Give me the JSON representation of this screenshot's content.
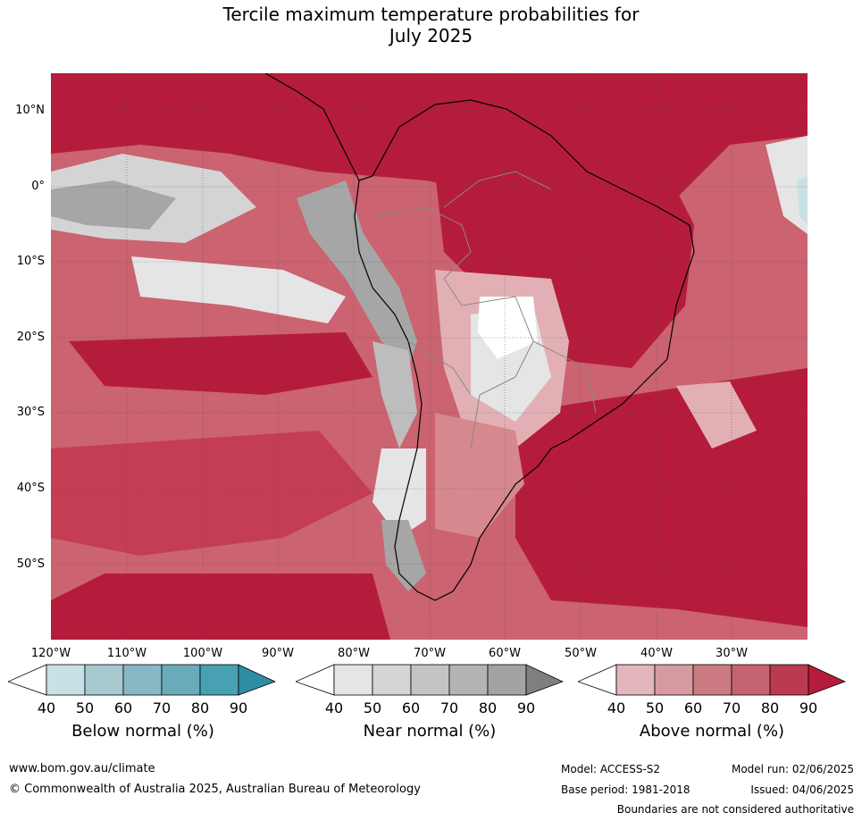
{
  "title_line1": "Tercile maximum temperature probabilities for",
  "title_line2": "July 2025",
  "map": {
    "lat_labels": [
      "10°N",
      "0°",
      "10°S",
      "20°S",
      "30°S",
      "40°S",
      "50°S"
    ],
    "lon_labels": [
      "120°W",
      "110°W",
      "100°W",
      "90°W",
      "80°W",
      "70°W",
      "60°W",
      "50°W",
      "40°W",
      "30°W"
    ],
    "colors": {
      "above_90": "#b51c3b",
      "above_80": "#c43d52",
      "above_70": "#cb6370",
      "above_60": "#d6888e",
      "above_50": "#e2b0b4",
      "near_50": "#e5e5e5",
      "near_60": "#d4d4d4",
      "near_70": "#bdbdbd",
      "near_80": "#a6a6a6",
      "below_50": "#c8e1e7",
      "ocean_land_line": "#000000",
      "border_line": "#888888"
    }
  },
  "legends": [
    {
      "title": "Below normal (%)",
      "ticks": [
        "40",
        "50",
        "60",
        "70",
        "80",
        "90"
      ],
      "colors": [
        "#c8e1e7",
        "#a6c9d0",
        "#88b8c4",
        "#6aabba",
        "#47a1b2",
        "#2e8da4"
      ]
    },
    {
      "title": "Near normal (%)",
      "ticks": [
        "40",
        "50",
        "60",
        "70",
        "80",
        "90"
      ],
      "colors": [
        "#e5e5e5",
        "#d5d5d5",
        "#c4c4c4",
        "#b4b4b4",
        "#a3a3a3",
        "#7f7f7f"
      ]
    },
    {
      "title": "Above normal (%)",
      "ticks": [
        "40",
        "50",
        "60",
        "70",
        "80",
        "90"
      ],
      "colors": [
        "#e2b6ba",
        "#d79aa0",
        "#cc7a82",
        "#c66370",
        "#bb3a50",
        "#b51c3b"
      ]
    }
  ],
  "footer": {
    "website": "www.bom.gov.au/climate",
    "copyright": "© Commonwealth of Australia 2025, Australian Bureau of Meteorology",
    "model": "Model: ACCESS-S2",
    "base_period": "Base period: 1981-2018",
    "model_run": "Model run: 02/06/2025",
    "issued": "Issued: 04/06/2025",
    "disclaimer": "Boundaries are not considered authoritative"
  }
}
